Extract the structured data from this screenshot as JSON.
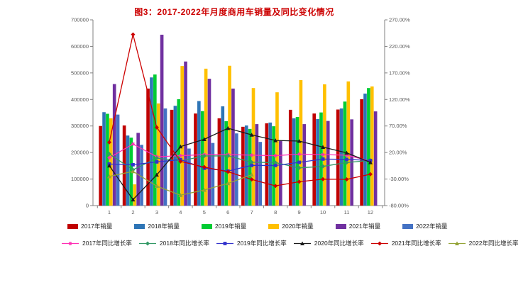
{
  "title": "图3：2017-2022年月度商用车销量及同比变化情况",
  "chart_data": {
    "type": "combo-bar-line",
    "title": "图3：2017-2022年月度商用车销量及同比变化情况",
    "categories": [
      1,
      2,
      3,
      4,
      5,
      6,
      7,
      8,
      9,
      10,
      11,
      12
    ],
    "left_axis": {
      "min": 0,
      "max": 700000,
      "tick_step": 100000,
      "tick_labels": [
        "700000",
        "600000",
        "500000",
        "400000",
        "300000",
        "200000",
        "100000",
        "0"
      ]
    },
    "right_axis": {
      "min": -80,
      "max": 270,
      "tick_step": 50,
      "tick_labels": [
        "270.00%",
        "220.00%",
        "170.00%",
        "120.00%",
        "70.00%",
        "20.00%",
        "-30.00%",
        "-80.00%"
      ]
    },
    "grid": "off",
    "legend_position": "bottom",
    "bar_series": [
      {
        "name": "2017年销量",
        "color": "#C00000",
        "values": [
          300000,
          302000,
          441000,
          361000,
          347000,
          329000,
          297000,
          310000,
          361000,
          347000,
          362000,
          401000
        ]
      },
      {
        "name": "2018年销量",
        "color": "#2E75B6",
        "values": [
          352000,
          264000,
          483000,
          376000,
          394000,
          374000,
          302000,
          313000,
          329000,
          326000,
          366000,
          422000
        ]
      },
      {
        "name": "2019年销量",
        "color": "#00CC33",
        "values": [
          346000,
          256000,
          494000,
          401000,
          356000,
          318000,
          289000,
          299000,
          334000,
          351000,
          392000,
          443000
        ]
      },
      {
        "name": "2020年销量",
        "color": "#FFC000",
        "values": [
          329000,
          80000,
          385000,
          526000,
          516000,
          527000,
          443000,
          427000,
          473000,
          457000,
          468000,
          449000
        ]
      },
      {
        "name": "2021年销量",
        "color": "#7030A0",
        "values": [
          458000,
          274000,
          644000,
          543000,
          478000,
          441000,
          307000,
          244000,
          307000,
          319000,
          325000,
          355000
        ]
      },
      {
        "name": "2022年销量",
        "color": "#4472C4",
        "values": [
          343000,
          229000,
          366000,
          215000,
          236000,
          272000,
          240000,
          null,
          null,
          null,
          null,
          null
        ]
      }
    ],
    "line_series": [
      {
        "name": "2017年同比增长率",
        "color": "#FF2FB4",
        "marker": "star",
        "values": [
          10,
          36,
          12,
          14,
          16,
          16,
          15,
          14,
          17,
          16,
          15,
          4
        ]
      },
      {
        "name": "2018年同比增长率",
        "color": "#339966",
        "marker": "diamond",
        "values": [
          17.3,
          -12.6,
          9.5,
          4.2,
          13.5,
          13.7,
          1.7,
          1.0,
          -8.9,
          -6.1,
          1.1,
          5.2
        ]
      },
      {
        "name": "2019年同比增长率",
        "color": "#3333CC",
        "marker": "square",
        "values": [
          -1.7,
          -3.0,
          2.3,
          6.6,
          -9.6,
          -15.0,
          -4.3,
          -4.5,
          1.5,
          7.7,
          7.1,
          5.0
        ]
      },
      {
        "name": "2020年同比增长率",
        "color": "#1A1A1A",
        "marker": "triangle",
        "values": [
          -4.9,
          -68.8,
          -22.1,
          31.2,
          44.9,
          65.7,
          53.3,
          42.8,
          41.6,
          30.2,
          19.4,
          1.4
        ]
      },
      {
        "name": "2021年同比增长率",
        "color": "#CC0000",
        "marker": "diamond",
        "values": [
          39.2,
          242.5,
          67.3,
          3.2,
          -7.4,
          -16.3,
          -30.7,
          -42.9,
          -35.1,
          -30.2,
          -30.6,
          -20.9
        ]
      },
      {
        "name": "2022年同比增长率",
        "color": "#94A437",
        "marker": "triangle",
        "values": [
          -25.1,
          -15.5,
          -43.2,
          -60.4,
          -50.6,
          -38.3,
          -21.8,
          null,
          null,
          null,
          null,
          null
        ]
      }
    ]
  }
}
